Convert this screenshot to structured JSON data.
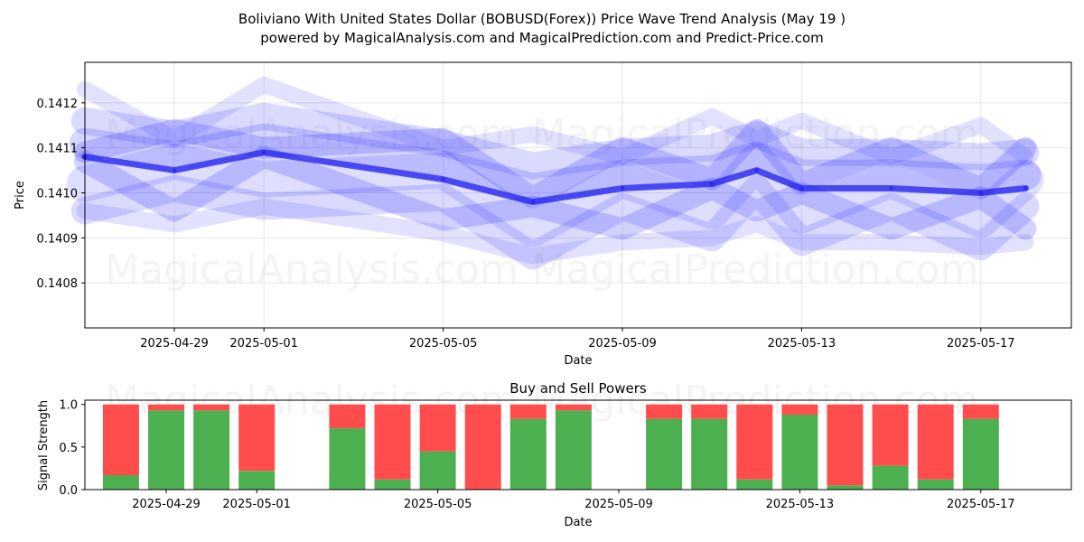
{
  "title_line1": "Boliviano With United States Dollar (BOBUSD(Forex)) Price Wave Trend Analysis (May 19 )",
  "title_line2": "powered by MagicalAnalysis.com and MagicalPrediction.com and Predict-Price.com",
  "watermarks": [
    "MagicalAnalysis.com",
    "MagicalPrediction.com"
  ],
  "colors": {
    "wave": "#3333ff",
    "trend": "#2222ee",
    "buy": "#4caf50",
    "sell": "#ff4d4d",
    "grid": "#e6e6e6"
  },
  "chart_data": [
    {
      "type": "line",
      "xlabel": "Date",
      "ylabel": "Price",
      "grid": true,
      "xlim": [
        "2025-04-26",
        "2025-05-19"
      ],
      "ylim": [
        0.1407,
        0.14129
      ],
      "x_ticks": [
        "2025-04-29",
        "2025-05-01",
        "2025-05-05",
        "2025-05-09",
        "2025-05-13",
        "2025-05-17"
      ],
      "y_ticks": [
        0.1408,
        0.1409,
        0.141,
        0.1411,
        0.1412
      ],
      "series": [
        {
          "x": [
            "2025-04-27",
            "2025-04-29",
            "2025-05-01",
            "2025-05-05",
            "2025-05-07",
            "2025-05-09",
            "2025-05-11",
            "2025-05-12",
            "2025-05-13",
            "2025-05-15",
            "2025-05-17",
            "2025-05-18"
          ],
          "y": [
            0.14108,
            0.14105,
            0.14109,
            0.14103,
            0.14098,
            0.14101,
            0.14102,
            0.14105,
            0.14101,
            0.14101,
            0.141,
            0.14101
          ]
        }
      ]
    },
    {
      "type": "bar",
      "title": "Buy and Sell Powers",
      "xlabel": "Date",
      "ylabel": "Signal Strength",
      "ylim": [
        0,
        1.05
      ],
      "y_ticks": [
        0.0,
        0.5,
        1.0
      ],
      "x_ticks": [
        "2025-04-29",
        "2025-05-01",
        "2025-05-05",
        "2025-05-09",
        "2025-05-13",
        "2025-05-17"
      ],
      "categories": [
        "2025-04-28",
        "2025-04-29",
        "2025-04-30",
        "2025-05-01",
        "2025-05-03",
        "2025-05-04",
        "2025-05-05",
        "2025-05-06",
        "2025-05-07",
        "2025-05-08",
        "2025-05-10",
        "2025-05-11",
        "2025-05-12",
        "2025-05-13",
        "2025-05-14",
        "2025-05-15",
        "2025-05-16",
        "2025-05-17"
      ],
      "series": [
        {
          "values": [
            0.17,
            0.93,
            0.93,
            0.22,
            0.72,
            0.12,
            0.45,
            0.0,
            0.83,
            0.93,
            0.83,
            0.83,
            0.12,
            0.88,
            0.05,
            0.28,
            0.12,
            0.83
          ]
        },
        {
          "values": [
            0.83,
            0.07,
            0.07,
            0.78,
            0.28,
            0.88,
            0.55,
            1.0,
            0.17,
            0.07,
            0.17,
            0.17,
            0.88,
            0.12,
            0.95,
            0.72,
            0.88,
            0.17
          ]
        }
      ]
    }
  ]
}
